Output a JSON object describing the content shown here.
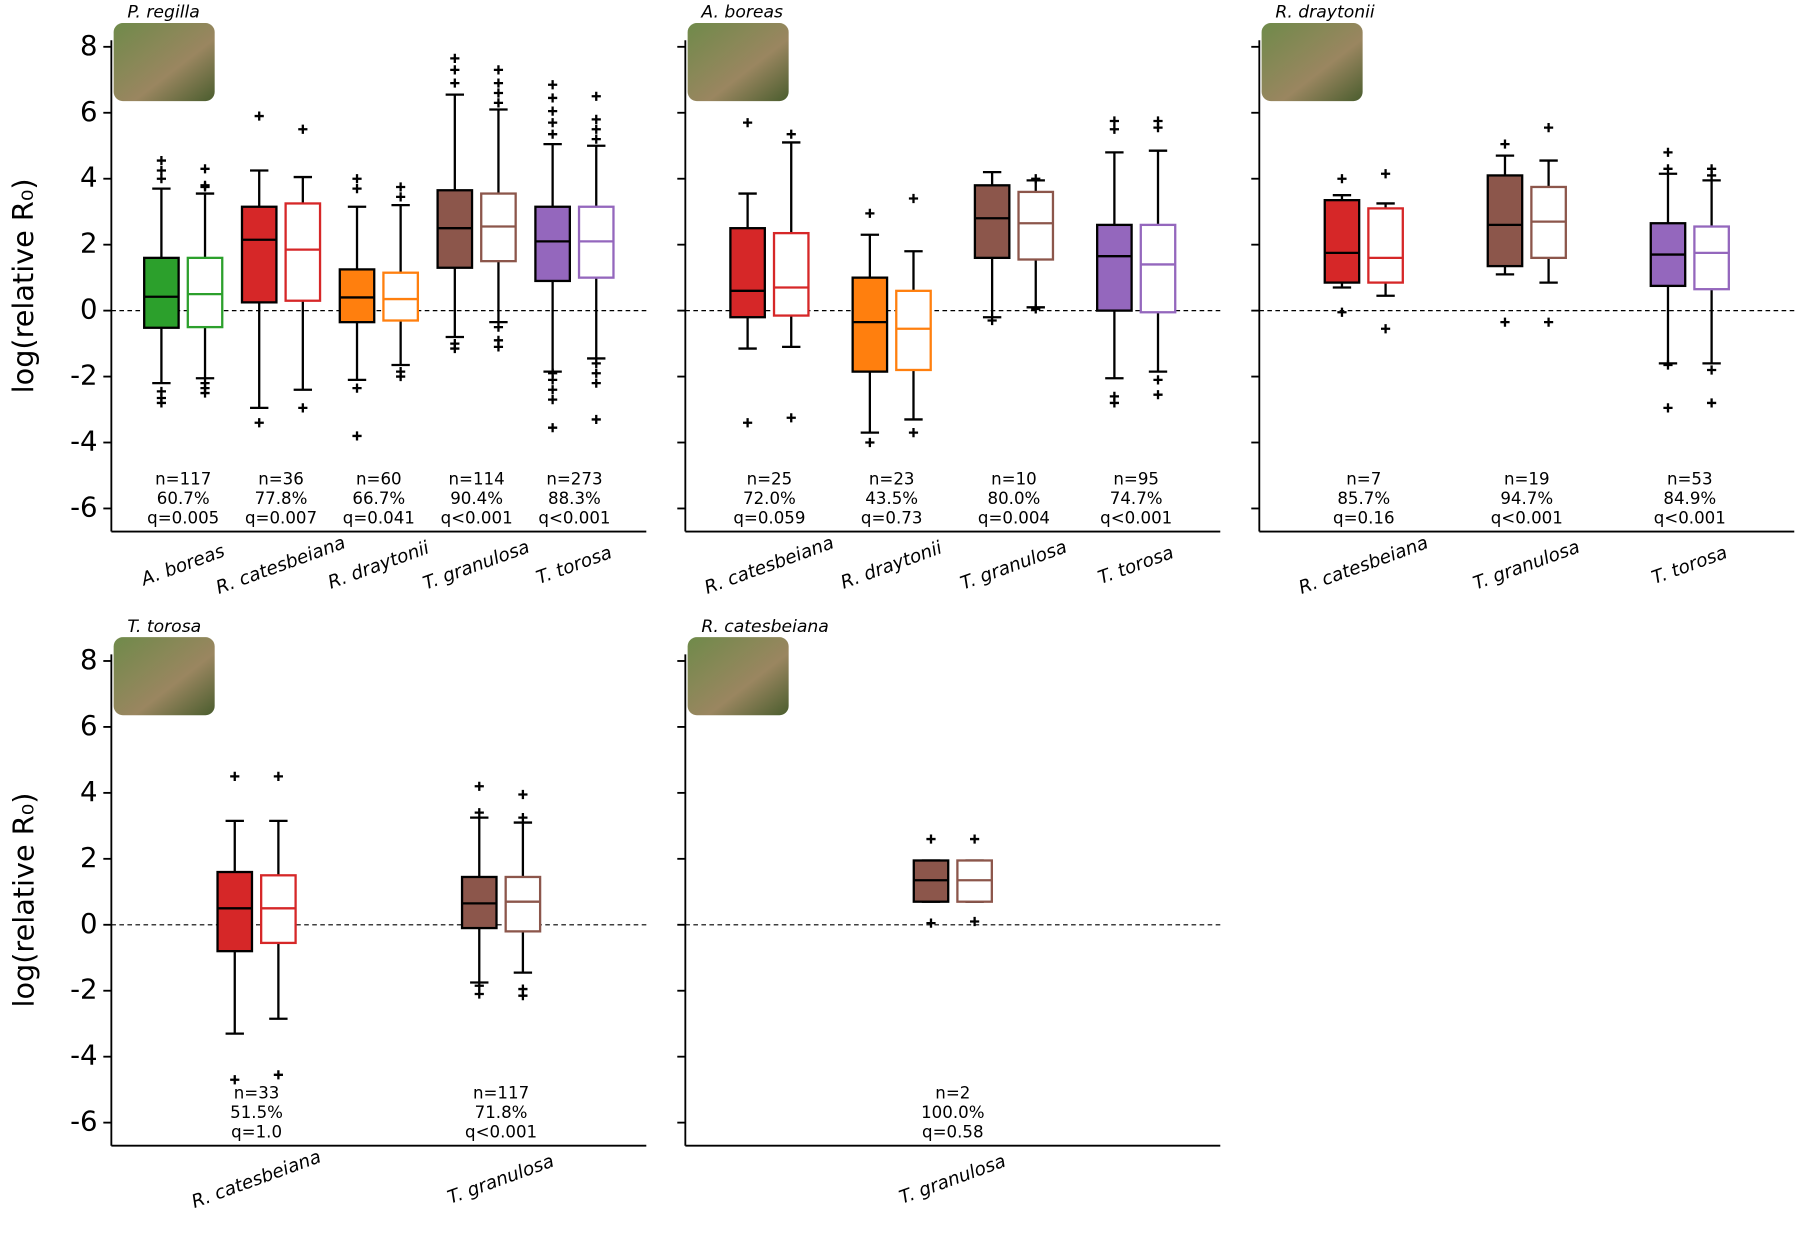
{
  "chart_data": [
    {
      "type": "box",
      "title": "P. regilla",
      "ylabel": "log(relative R₀)",
      "show_ytick_labels": true,
      "ylim": [
        -6.7,
        8.2
      ],
      "yticks": [
        -6,
        -4,
        -2,
        0,
        2,
        4,
        6,
        8
      ],
      "hline": 0,
      "groups": [
        {
          "label": "A. boreas",
          "color": "#2ca02c",
          "annotation": [
            "n=117",
            "60.7%",
            "q=0.005"
          ],
          "boxes": [
            {
              "whislo": -2.2,
              "q1": -0.52,
              "med": 0.42,
              "q3": 1.6,
              "whishi": 3.7,
              "fliers": [
                4.55,
                4.25,
                4.0,
                -2.45,
                -2.65,
                -2.8
              ]
            },
            {
              "whislo": -2.05,
              "q1": -0.5,
              "med": 0.5,
              "q3": 1.6,
              "whishi": 3.55,
              "fliers": [
                4.3,
                3.8,
                3.75,
                -2.2,
                -2.35,
                -2.5
              ]
            }
          ]
        },
        {
          "label": "R. catesbeiana",
          "color": "#d62728",
          "annotation": [
            "n=36",
            "77.8%",
            "q=0.007"
          ],
          "boxes": [
            {
              "whislo": -2.95,
              "q1": 0.25,
              "med": 2.15,
              "q3": 3.15,
              "whishi": 4.25,
              "fliers": [
                5.9,
                -3.4
              ]
            },
            {
              "whislo": -2.4,
              "q1": 0.3,
              "med": 1.85,
              "q3": 3.25,
              "whishi": 4.05,
              "fliers": [
                5.5,
                -2.95
              ]
            }
          ]
        },
        {
          "label": "R. draytonii",
          "color": "#ff7f0e",
          "annotation": [
            "n=60",
            "66.7%",
            "q=0.041"
          ],
          "boxes": [
            {
              "whislo": -2.1,
              "q1": -0.35,
              "med": 0.4,
              "q3": 1.25,
              "whishi": 3.15,
              "fliers": [
                4.0,
                3.7,
                -2.35,
                -3.8
              ]
            },
            {
              "whislo": -1.65,
              "q1": -0.3,
              "med": 0.35,
              "q3": 1.15,
              "whishi": 3.2,
              "fliers": [
                3.75,
                3.45,
                -1.85,
                -2.0
              ]
            }
          ]
        },
        {
          "label": "T. granulosa",
          "color": "#8c564b",
          "annotation": [
            "n=114",
            "90.4%",
            "q<0.001"
          ],
          "boxes": [
            {
              "whislo": -0.8,
              "q1": 1.3,
              "med": 2.5,
              "q3": 3.65,
              "whishi": 6.55,
              "fliers": [
                7.65,
                7.3,
                6.9,
                -1.0,
                -1.15
              ]
            },
            {
              "whislo": -0.35,
              "q1": 1.5,
              "med": 2.55,
              "q3": 3.55,
              "whishi": 6.1,
              "fliers": [
                7.3,
                6.9,
                6.6,
                6.3,
                -0.5,
                -0.9,
                -1.1
              ]
            }
          ]
        },
        {
          "label": "T. torosa",
          "color": "#9467bd",
          "annotation": [
            "n=273",
            "88.3%",
            "q<0.001"
          ],
          "boxes": [
            {
              "whislo": -1.85,
              "q1": 0.9,
              "med": 2.1,
              "q3": 3.15,
              "whishi": 5.05,
              "fliers": [
                6.85,
                6.45,
                6.05,
                5.7,
                5.35,
                -1.9,
                -2.1,
                -2.4,
                -2.7,
                -3.55
              ]
            },
            {
              "whislo": -1.45,
              "q1": 1.0,
              "med": 2.1,
              "q3": 3.15,
              "whishi": 5.0,
              "fliers": [
                6.5,
                5.8,
                5.5,
                5.2,
                -1.6,
                -1.9,
                -2.2,
                -3.3
              ]
            }
          ]
        }
      ]
    },
    {
      "type": "box",
      "title": "A. boreas",
      "show_ytick_labels": false,
      "ylim": [
        -6.7,
        8.2
      ],
      "yticks": [
        -6,
        -4,
        -2,
        0,
        2,
        4,
        6,
        8
      ],
      "hline": 0,
      "groups": [
        {
          "label": "R. catesbeiana",
          "color": "#d62728",
          "annotation": [
            "n=25",
            "72.0%",
            "q=0.059"
          ],
          "boxes": [
            {
              "whislo": -1.15,
              "q1": -0.2,
              "med": 0.6,
              "q3": 2.5,
              "whishi": 3.55,
              "fliers": [
                5.7,
                -3.4
              ]
            },
            {
              "whislo": -1.1,
              "q1": -0.15,
              "med": 0.7,
              "q3": 2.35,
              "whishi": 5.1,
              "fliers": [
                5.35,
                -3.25
              ]
            }
          ]
        },
        {
          "label": "R. draytonii",
          "color": "#ff7f0e",
          "annotation": [
            "n=23",
            "43.5%",
            "q=0.73"
          ],
          "boxes": [
            {
              "whislo": -3.7,
              "q1": -1.85,
              "med": -0.35,
              "q3": 1.0,
              "whishi": 2.3,
              "fliers": [
                2.95,
                -4.0
              ]
            },
            {
              "whislo": -3.3,
              "q1": -1.8,
              "med": -0.55,
              "q3": 0.6,
              "whishi": 1.8,
              "fliers": [
                3.4,
                -3.7
              ]
            }
          ]
        },
        {
          "label": "T. granulosa",
          "color": "#8c564b",
          "annotation": [
            "n=10",
            "80.0%",
            "q=0.004"
          ],
          "boxes": [
            {
              "whislo": -0.2,
              "q1": 1.6,
              "med": 2.8,
              "q3": 3.8,
              "whishi": 4.2,
              "fliers": [
                -0.3
              ]
            },
            {
              "whislo": 0.1,
              "q1": 1.55,
              "med": 2.65,
              "q3": 3.6,
              "whishi": 3.95,
              "fliers": [
                4.0,
                0.05
              ]
            }
          ]
        },
        {
          "label": "T. torosa",
          "color": "#9467bd",
          "annotation": [
            "n=95",
            "74.7%",
            "q<0.001"
          ],
          "boxes": [
            {
              "whislo": -2.05,
              "q1": 0.0,
              "med": 1.65,
              "q3": 2.6,
              "whishi": 4.8,
              "fliers": [
                5.75,
                5.5,
                -2.6,
                -2.8
              ]
            },
            {
              "whislo": -1.85,
              "q1": -0.05,
              "med": 1.4,
              "q3": 2.6,
              "whishi": 4.85,
              "fliers": [
                5.75,
                5.55,
                -2.1,
                -2.55
              ]
            }
          ]
        }
      ]
    },
    {
      "type": "box",
      "title": "R. draytonii",
      "show_ytick_labels": false,
      "ylim": [
        -6.7,
        8.2
      ],
      "yticks": [
        -6,
        -4,
        -2,
        0,
        2,
        4,
        6,
        8
      ],
      "hline": 0,
      "groups": [
        {
          "label": "R. catesbeiana",
          "color": "#d62728",
          "annotation": [
            "n=7",
            "85.7%",
            "q=0.16"
          ],
          "boxes": [
            {
              "whislo": 0.7,
              "q1": 0.85,
              "med": 1.75,
              "q3": 3.35,
              "whishi": 3.5,
              "fliers": [
                4.0,
                -0.05
              ]
            },
            {
              "whislo": 0.45,
              "q1": 0.85,
              "med": 1.6,
              "q3": 3.1,
              "whishi": 3.25,
              "fliers": [
                4.15,
                -0.55
              ]
            }
          ]
        },
        {
          "label": "T. granulosa",
          "color": "#8c564b",
          "annotation": [
            "n=19",
            "94.7%",
            "q<0.001"
          ],
          "boxes": [
            {
              "whislo": 1.1,
              "q1": 1.35,
              "med": 2.6,
              "q3": 4.1,
              "whishi": 4.7,
              "fliers": [
                5.05,
                -0.35
              ]
            },
            {
              "whislo": 0.85,
              "q1": 1.6,
              "med": 2.7,
              "q3": 3.75,
              "whishi": 4.55,
              "fliers": [
                5.55,
                -0.35
              ]
            }
          ]
        },
        {
          "label": "T. torosa",
          "color": "#9467bd",
          "annotation": [
            "n=53",
            "84.9%",
            "q<0.001"
          ],
          "boxes": [
            {
              "whislo": -1.6,
              "q1": 0.75,
              "med": 1.7,
              "q3": 2.65,
              "whishi": 4.15,
              "fliers": [
                4.8,
                4.3,
                -1.65,
                -2.95
              ]
            },
            {
              "whislo": -1.6,
              "q1": 0.65,
              "med": 1.75,
              "q3": 2.55,
              "whishi": 3.95,
              "fliers": [
                4.3,
                4.1,
                -1.8,
                -2.8
              ]
            }
          ]
        }
      ]
    },
    {
      "type": "box",
      "title": "T. torosa",
      "ylabel": "log(relative R₀)",
      "show_ytick_labels": true,
      "ylim": [
        -6.7,
        8.2
      ],
      "yticks": [
        -6,
        -4,
        -2,
        0,
        2,
        4,
        6,
        8
      ],
      "hline": 0,
      "groups": [
        {
          "label": "R. catesbeiana",
          "color": "#d62728",
          "annotation": [
            "n=33",
            "51.5%",
            "q=1.0"
          ],
          "boxes": [
            {
              "whislo": -3.3,
              "q1": -0.8,
              "med": 0.5,
              "q3": 1.6,
              "whishi": 3.15,
              "fliers": [
                4.5,
                -4.7
              ]
            },
            {
              "whislo": -2.85,
              "q1": -0.55,
              "med": 0.5,
              "q3": 1.5,
              "whishi": 3.15,
              "fliers": [
                4.5,
                -4.55
              ]
            }
          ]
        },
        {
          "label": "T. granulosa",
          "color": "#8c564b",
          "annotation": [
            "n=117",
            "71.8%",
            "q<0.001"
          ],
          "boxes": [
            {
              "whislo": -1.75,
              "q1": -0.1,
              "med": 0.65,
              "q3": 1.45,
              "whishi": 3.25,
              "fliers": [
                4.2,
                3.4,
                -1.85,
                -2.1
              ]
            },
            {
              "whislo": -1.45,
              "q1": -0.2,
              "med": 0.7,
              "q3": 1.45,
              "whishi": 3.1,
              "fliers": [
                3.95,
                3.25,
                -1.95,
                -2.15
              ]
            }
          ]
        }
      ]
    },
    {
      "type": "box",
      "title": "R. catesbeiana",
      "show_ytick_labels": false,
      "ylim": [
        -6.7,
        8.2
      ],
      "yticks": [
        -6,
        -4,
        -2,
        0,
        2,
        4,
        6,
        8
      ],
      "hline": 0,
      "groups": [
        {
          "label": "T. granulosa",
          "color": "#8c564b",
          "annotation": [
            "n=2",
            "100.0%",
            "q=0.58"
          ],
          "boxes": [
            {
              "whislo": 0.7,
              "q1": 0.7,
              "med": 1.35,
              "q3": 1.95,
              "whishi": 1.95,
              "fliers": [
                2.6,
                0.05
              ]
            },
            {
              "whislo": 0.7,
              "q1": 0.7,
              "med": 1.35,
              "q3": 1.95,
              "whishi": 1.95,
              "fliers": [
                2.6,
                0.1
              ]
            }
          ]
        }
      ]
    }
  ]
}
